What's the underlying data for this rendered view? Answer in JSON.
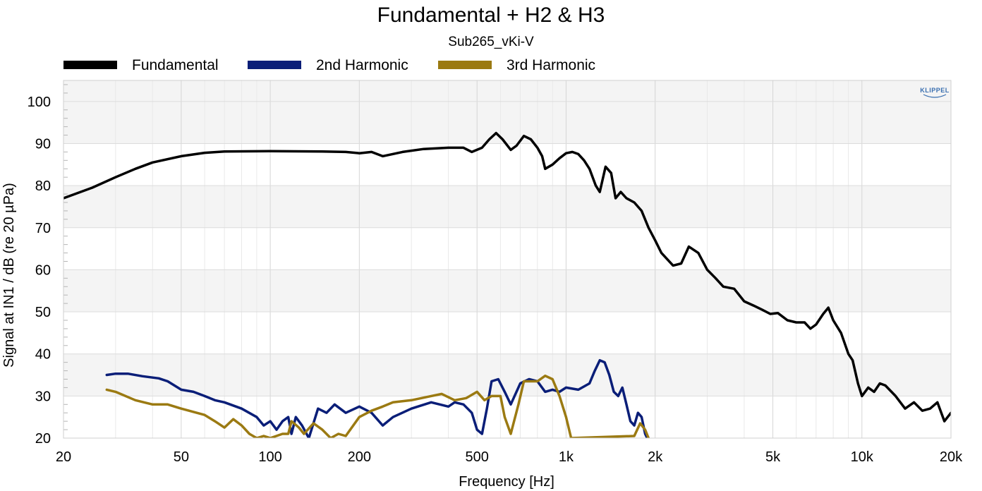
{
  "chart_data": {
    "type": "line",
    "title": "Fundamental + H2 & H3",
    "subtitle": "Sub265_vKi-V",
    "xlabel": "Frequency [Hz]",
    "ylabel": "Signal at IN1 / dB (re 20 µPa)",
    "xscale": "log",
    "xlim": [
      20,
      20000
    ],
    "ylim": [
      20,
      105
    ],
    "grid": true,
    "legend_position": "top-left",
    "x_ticks": [
      {
        "value": 20,
        "label": "20"
      },
      {
        "value": 50,
        "label": "50"
      },
      {
        "value": 100,
        "label": "100"
      },
      {
        "value": 200,
        "label": "200"
      },
      {
        "value": 500,
        "label": "500"
      },
      {
        "value": 1000,
        "label": "1k"
      },
      {
        "value": 2000,
        "label": "2k"
      },
      {
        "value": 5000,
        "label": "5k"
      },
      {
        "value": 10000,
        "label": "10k"
      },
      {
        "value": 20000,
        "label": "20k"
      }
    ],
    "y_ticks": [
      20,
      30,
      40,
      50,
      60,
      70,
      80,
      90,
      100
    ],
    "series": [
      {
        "name": "Fundamental",
        "color": "#000000",
        "points": [
          [
            20,
            77
          ],
          [
            25,
            79.5
          ],
          [
            30,
            82
          ],
          [
            35,
            84
          ],
          [
            40,
            85.5
          ],
          [
            50,
            87
          ],
          [
            60,
            87.8
          ],
          [
            70,
            88.1
          ],
          [
            100,
            88.2
          ],
          [
            150,
            88.1
          ],
          [
            180,
            88.0
          ],
          [
            200,
            87.7
          ],
          [
            220,
            88.0
          ],
          [
            240,
            87.0
          ],
          [
            280,
            88.0
          ],
          [
            330,
            88.7
          ],
          [
            400,
            89.0
          ],
          [
            450,
            89.0
          ],
          [
            480,
            88.0
          ],
          [
            520,
            89.0
          ],
          [
            550,
            91
          ],
          [
            580,
            92.5
          ],
          [
            610,
            91
          ],
          [
            650,
            88.5
          ],
          [
            680,
            89.5
          ],
          [
            720,
            91.8
          ],
          [
            760,
            91
          ],
          [
            800,
            89
          ],
          [
            830,
            87
          ],
          [
            850,
            84
          ],
          [
            900,
            85
          ],
          [
            950,
            86.5
          ],
          [
            1000,
            87.7
          ],
          [
            1050,
            88
          ],
          [
            1100,
            87.5
          ],
          [
            1150,
            86
          ],
          [
            1200,
            84
          ],
          [
            1260,
            80
          ],
          [
            1300,
            78.5
          ],
          [
            1360,
            84.5
          ],
          [
            1420,
            83
          ],
          [
            1470,
            77
          ],
          [
            1530,
            78.5
          ],
          [
            1600,
            77
          ],
          [
            1700,
            76
          ],
          [
            1800,
            74
          ],
          [
            1900,
            70
          ],
          [
            2000,
            67
          ],
          [
            2100,
            64
          ],
          [
            2300,
            61
          ],
          [
            2450,
            61.5
          ],
          [
            2600,
            65.5
          ],
          [
            2800,
            64
          ],
          [
            3000,
            60
          ],
          [
            3200,
            58
          ],
          [
            3400,
            56
          ],
          [
            3700,
            55.5
          ],
          [
            4000,
            52.5
          ],
          [
            4300,
            51.5
          ],
          [
            4600,
            50.5
          ],
          [
            4900,
            49.5
          ],
          [
            5200,
            49.7
          ],
          [
            5600,
            48
          ],
          [
            6000,
            47.5
          ],
          [
            6400,
            47.5
          ],
          [
            6700,
            46
          ],
          [
            7000,
            47
          ],
          [
            7400,
            49.5
          ],
          [
            7700,
            51
          ],
          [
            8000,
            48
          ],
          [
            8500,
            45
          ],
          [
            9000,
            40
          ],
          [
            9300,
            38.5
          ],
          [
            9700,
            33
          ],
          [
            10000,
            30
          ],
          [
            10500,
            32
          ],
          [
            11000,
            31
          ],
          [
            11500,
            33
          ],
          [
            12000,
            32.5
          ],
          [
            13000,
            30
          ],
          [
            14000,
            27
          ],
          [
            15000,
            28.5
          ],
          [
            16000,
            26.5
          ],
          [
            17000,
            27
          ],
          [
            18000,
            28.5
          ],
          [
            19000,
            24
          ],
          [
            20000,
            26
          ]
        ]
      },
      {
        "name": "2nd Harmonic",
        "color": "#0a1e78",
        "points": [
          [
            28,
            35
          ],
          [
            30,
            35.3
          ],
          [
            33,
            35.3
          ],
          [
            37,
            34.7
          ],
          [
            42,
            34.2
          ],
          [
            45,
            33.5
          ],
          [
            50,
            31.5
          ],
          [
            55,
            31
          ],
          [
            60,
            30
          ],
          [
            65,
            29
          ],
          [
            70,
            28.5
          ],
          [
            80,
            27
          ],
          [
            90,
            25
          ],
          [
            95,
            23
          ],
          [
            100,
            24
          ],
          [
            105,
            22
          ],
          [
            110,
            24
          ],
          [
            115,
            25
          ],
          [
            118,
            21
          ],
          [
            122,
            25
          ],
          [
            128,
            23
          ],
          [
            135,
            20
          ],
          [
            145,
            27
          ],
          [
            155,
            26
          ],
          [
            165,
            28
          ],
          [
            180,
            26
          ],
          [
            200,
            27.5
          ],
          [
            220,
            26
          ],
          [
            240,
            23
          ],
          [
            260,
            25
          ],
          [
            300,
            27
          ],
          [
            350,
            28.5
          ],
          [
            400,
            27.5
          ],
          [
            420,
            28.5
          ],
          [
            450,
            28
          ],
          [
            480,
            26
          ],
          [
            500,
            22
          ],
          [
            520,
            21
          ],
          [
            540,
            27
          ],
          [
            560,
            33.5
          ],
          [
            590,
            34
          ],
          [
            620,
            31
          ],
          [
            650,
            28
          ],
          [
            700,
            33
          ],
          [
            750,
            34
          ],
          [
            800,
            33.5
          ],
          [
            850,
            31
          ],
          [
            900,
            31.5
          ],
          [
            950,
            31
          ],
          [
            1000,
            32
          ],
          [
            1100,
            31.5
          ],
          [
            1200,
            33
          ],
          [
            1250,
            36
          ],
          [
            1300,
            38.5
          ],
          [
            1350,
            38
          ],
          [
            1400,
            35
          ],
          [
            1450,
            31
          ],
          [
            1500,
            30
          ],
          [
            1550,
            32
          ],
          [
            1600,
            28
          ],
          [
            1650,
            24
          ],
          [
            1700,
            23
          ],
          [
            1750,
            26
          ],
          [
            1800,
            25
          ],
          [
            1850,
            21
          ],
          [
            1880,
            20
          ]
        ]
      },
      {
        "name": "3rd Harmonic",
        "color": "#9b7a12",
        "points": [
          [
            28,
            31.5
          ],
          [
            30,
            31
          ],
          [
            35,
            29
          ],
          [
            40,
            28
          ],
          [
            45,
            28
          ],
          [
            50,
            27
          ],
          [
            60,
            25.5
          ],
          [
            65,
            24
          ],
          [
            70,
            22.5
          ],
          [
            75,
            24.5
          ],
          [
            80,
            23
          ],
          [
            85,
            21
          ],
          [
            90,
            20
          ],
          [
            95,
            20.5
          ],
          [
            100,
            20
          ],
          [
            110,
            21
          ],
          [
            115,
            21
          ],
          [
            118,
            24
          ],
          [
            125,
            22.5
          ],
          [
            130,
            21
          ],
          [
            140,
            23.5
          ],
          [
            150,
            22
          ],
          [
            160,
            20
          ],
          [
            170,
            21
          ],
          [
            180,
            20.5
          ],
          [
            200,
            25
          ],
          [
            220,
            26.5
          ],
          [
            240,
            27.5
          ],
          [
            260,
            28.5
          ],
          [
            300,
            29
          ],
          [
            350,
            30
          ],
          [
            380,
            30.5
          ],
          [
            420,
            29
          ],
          [
            460,
            29.5
          ],
          [
            500,
            31
          ],
          [
            530,
            29
          ],
          [
            560,
            30
          ],
          [
            600,
            30
          ],
          [
            620,
            25
          ],
          [
            650,
            21
          ],
          [
            690,
            28
          ],
          [
            720,
            33.5
          ],
          [
            760,
            33.5
          ],
          [
            800,
            33.5
          ],
          [
            850,
            34.8
          ],
          [
            900,
            34
          ],
          [
            950,
            30
          ],
          [
            1000,
            25
          ],
          [
            1040,
            20
          ],
          [
            1700,
            20.5
          ],
          [
            1780,
            23.5
          ],
          [
            1850,
            22
          ],
          [
            1900,
            20
          ]
        ]
      }
    ]
  },
  "logo": {
    "text": "KLIPPEL"
  }
}
